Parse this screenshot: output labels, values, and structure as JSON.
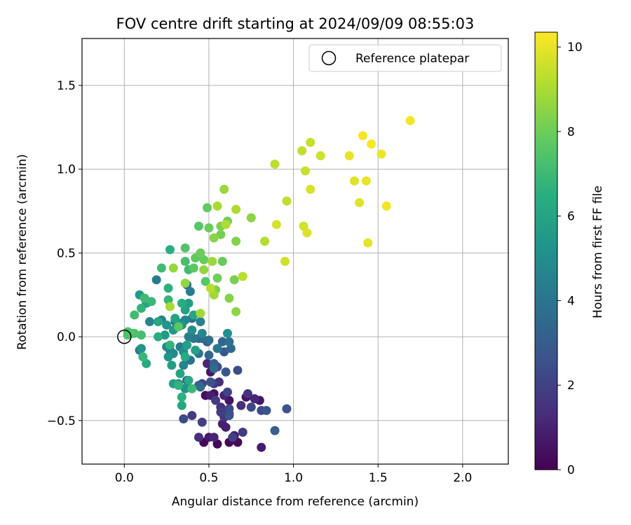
{
  "chart_data": {
    "type": "scatter",
    "title": "FOV centre drift starting at 2024/09/09 08:55:03",
    "xlabel": "Angular distance from reference (arcmin)",
    "ylabel": "Rotation from reference (arcmin)",
    "xlim": [
      -0.25,
      2.27
    ],
    "ylim": [
      -0.76,
      1.78
    ],
    "xticks": [
      0.0,
      0.5,
      1.0,
      1.5,
      2.0
    ],
    "xtick_labels": [
      "0.0",
      "0.5",
      "1.0",
      "1.5",
      "2.0"
    ],
    "yticks": [
      -0.5,
      0.0,
      0.5,
      1.0,
      1.5
    ],
    "ytick_labels": [
      "−0.5",
      "0.0",
      "0.5",
      "1.0",
      "1.5"
    ],
    "grid": true,
    "legend": {
      "position": "top-right",
      "label": "Reference platepar"
    },
    "reference_point": {
      "x": 0.0,
      "y": 0.0
    },
    "colorbar": {
      "label": "Hours from first FF file",
      "min": 0,
      "max": 10.35,
      "ticks": [
        0,
        2,
        4,
        6,
        8,
        10
      ],
      "tick_labels": [
        "0",
        "2",
        "4",
        "6",
        "8",
        "10"
      ],
      "colormap": "viridis"
    },
    "points": [
      {
        "x": 0.47,
        "y": -0.63,
        "h": 0.1
      },
      {
        "x": 0.55,
        "y": -0.64,
        "h": 0.15
      },
      {
        "x": 0.62,
        "y": -0.63,
        "h": 0.2
      },
      {
        "x": 0.67,
        "y": -0.63,
        "h": 0.25
      },
      {
        "x": 0.59,
        "y": -0.45,
        "h": 0.3
      },
      {
        "x": 0.48,
        "y": -0.35,
        "h": 0.35
      },
      {
        "x": 0.6,
        "y": -0.47,
        "h": 0.4
      },
      {
        "x": 0.53,
        "y": -0.34,
        "h": 0.45
      },
      {
        "x": 0.72,
        "y": -0.36,
        "h": 0.5
      },
      {
        "x": 0.62,
        "y": -0.38,
        "h": 0.55
      },
      {
        "x": 0.8,
        "y": -0.38,
        "h": 0.6
      },
      {
        "x": 0.51,
        "y": -0.21,
        "h": 0.65
      },
      {
        "x": 0.5,
        "y": -0.6,
        "h": 0.7
      },
      {
        "x": 0.65,
        "y": -0.59,
        "h": 0.75
      },
      {
        "x": 0.81,
        "y": -0.66,
        "h": 0.8
      },
      {
        "x": 0.51,
        "y": -0.35,
        "h": 0.85
      },
      {
        "x": 0.58,
        "y": -0.52,
        "h": 0.9
      },
      {
        "x": 0.6,
        "y": -0.54,
        "h": 0.95
      },
      {
        "x": 0.59,
        "y": -0.35,
        "h": 1.0
      },
      {
        "x": 0.53,
        "y": -0.6,
        "h": 1.05
      },
      {
        "x": 0.49,
        "y": -0.16,
        "h": 1.1
      },
      {
        "x": 0.77,
        "y": -0.37,
        "h": 1.15
      },
      {
        "x": 0.62,
        "y": -0.46,
        "h": 1.2
      },
      {
        "x": 0.56,
        "y": -0.27,
        "h": 1.3
      },
      {
        "x": 0.44,
        "y": -0.6,
        "h": 1.35
      },
      {
        "x": 0.69,
        "y": -0.41,
        "h": 1.4
      },
      {
        "x": 0.57,
        "y": -0.42,
        "h": 1.45
      },
      {
        "x": 0.73,
        "y": -0.34,
        "h": 1.5
      },
      {
        "x": 0.61,
        "y": -0.44,
        "h": 1.55
      },
      {
        "x": 0.59,
        "y": -0.48,
        "h": 1.6
      },
      {
        "x": 0.53,
        "y": -0.28,
        "h": 1.7
      },
      {
        "x": 0.7,
        "y": -0.57,
        "h": 1.75
      },
      {
        "x": 0.54,
        "y": -0.38,
        "h": 1.8
      },
      {
        "x": 0.4,
        "y": -0.47,
        "h": 1.85
      },
      {
        "x": 0.57,
        "y": -0.45,
        "h": 1.9
      },
      {
        "x": 0.64,
        "y": -0.6,
        "h": 1.95
      },
      {
        "x": 0.46,
        "y": -0.51,
        "h": 2.0
      },
      {
        "x": 0.61,
        "y": -0.33,
        "h": 2.1
      },
      {
        "x": 0.46,
        "y": -0.28,
        "h": 2.15
      },
      {
        "x": 0.75,
        "y": -0.42,
        "h": 2.2
      },
      {
        "x": 0.35,
        "y": -0.49,
        "h": 2.3
      },
      {
        "x": 0.62,
        "y": -0.43,
        "h": 2.35
      },
      {
        "x": 0.81,
        "y": -0.44,
        "h": 2.4
      },
      {
        "x": 0.67,
        "y": -0.2,
        "h": 2.45
      },
      {
        "x": 0.55,
        "y": -0.18,
        "h": 2.5
      },
      {
        "x": 0.51,
        "y": -0.27,
        "h": 2.6
      },
      {
        "x": 0.62,
        "y": -0.47,
        "h": 2.65
      },
      {
        "x": 0.96,
        "y": -0.43,
        "h": 2.7
      },
      {
        "x": 0.84,
        "y": -0.44,
        "h": 2.75
      },
      {
        "x": 0.6,
        "y": -0.21,
        "h": 2.8
      },
      {
        "x": 0.59,
        "y": -0.09,
        "h": 2.9
      },
      {
        "x": 0.49,
        "y": -0.03,
        "h": 3.0
      },
      {
        "x": 0.44,
        "y": -0.29,
        "h": 3.05
      },
      {
        "x": 0.89,
        "y": -0.56,
        "h": 3.1
      },
      {
        "x": 0.53,
        "y": -0.16,
        "h": 3.15
      },
      {
        "x": 0.37,
        "y": -0.26,
        "h": 3.2
      },
      {
        "x": 0.58,
        "y": -0.03,
        "h": 3.3
      },
      {
        "x": 0.5,
        "y": -0.11,
        "h": 3.35
      },
      {
        "x": 0.37,
        "y": 0.31,
        "h": 3.4
      },
      {
        "x": 0.44,
        "y": -0.01,
        "h": 3.45
      },
      {
        "x": 0.63,
        "y": -0.07,
        "h": 3.5
      },
      {
        "x": 0.53,
        "y": -0.19,
        "h": 3.55
      },
      {
        "x": 0.45,
        "y": -0.3,
        "h": 3.6
      },
      {
        "x": 0.46,
        "y": -0.01,
        "h": 3.7
      },
      {
        "x": 0.5,
        "y": -0.02,
        "h": 3.75
      },
      {
        "x": 0.27,
        "y": -0.08,
        "h": 3.8
      },
      {
        "x": 0.62,
        "y": -0.03,
        "h": 3.85
      },
      {
        "x": 0.39,
        "y": -0.14,
        "h": 3.9
      },
      {
        "x": 0.4,
        "y": 0.11,
        "h": 4.0
      },
      {
        "x": 0.44,
        "y": -0.1,
        "h": 4.05
      },
      {
        "x": 0.09,
        "y": -0.08,
        "h": 4.1
      },
      {
        "x": 0.55,
        "y": -0.07,
        "h": 4.15
      },
      {
        "x": 0.41,
        "y": -0.01,
        "h": 4.2
      },
      {
        "x": 0.39,
        "y": 0.27,
        "h": 4.25
      },
      {
        "x": 0.33,
        "y": -0.06,
        "h": 4.3
      },
      {
        "x": 0.19,
        "y": 0.34,
        "h": 4.35
      },
      {
        "x": 0.38,
        "y": 0.0,
        "h": 4.4
      },
      {
        "x": 0.22,
        "y": 0.1,
        "h": 4.45
      },
      {
        "x": 0.45,
        "y": 0.09,
        "h": 4.5
      },
      {
        "x": 0.3,
        "y": 0.09,
        "h": 4.55
      },
      {
        "x": 0.15,
        "y": 0.09,
        "h": 4.6
      },
      {
        "x": 0.35,
        "y": -0.17,
        "h": 4.65
      },
      {
        "x": 0.36,
        "y": 0.1,
        "h": 4.7
      },
      {
        "x": 0.46,
        "y": 0.02,
        "h": 4.75
      },
      {
        "x": 0.32,
        "y": -0.28,
        "h": 4.8
      },
      {
        "x": 0.25,
        "y": -0.06,
        "h": 4.85
      },
      {
        "x": 0.29,
        "y": -0.1,
        "h": 4.9
      },
      {
        "x": 0.4,
        "y": 0.04,
        "h": 4.95
      },
      {
        "x": 0.37,
        "y": -0.3,
        "h": 5.0
      },
      {
        "x": 0.33,
        "y": 0.08,
        "h": 5.05
      },
      {
        "x": 0.35,
        "y": -0.09,
        "h": 5.1
      },
      {
        "x": 0.61,
        "y": 0.02,
        "h": 5.15
      },
      {
        "x": 0.34,
        "y": 0.07,
        "h": 5.2
      },
      {
        "x": 0.36,
        "y": -0.31,
        "h": 5.25
      },
      {
        "x": 0.1,
        "y": -0.07,
        "h": 5.3
      },
      {
        "x": 0.26,
        "y": -0.12,
        "h": 5.35
      },
      {
        "x": 0.25,
        "y": 0.07,
        "h": 5.4
      },
      {
        "x": 0.37,
        "y": -0.05,
        "h": 5.45
      },
      {
        "x": 0.29,
        "y": 0.04,
        "h": 5.5
      },
      {
        "x": 0.24,
        "y": 0.01,
        "h": 5.55
      },
      {
        "x": 0.09,
        "y": 0.25,
        "h": 5.6
      },
      {
        "x": 0.38,
        "y": 0.2,
        "h": 5.65
      },
      {
        "x": 0.28,
        "y": -0.17,
        "h": 5.7
      },
      {
        "x": 0.37,
        "y": -0.05,
        "h": 5.75
      },
      {
        "x": 0.29,
        "y": -0.28,
        "h": 5.8
      },
      {
        "x": 0.42,
        "y": -0.08,
        "h": 5.85
      },
      {
        "x": 0.36,
        "y": 0.16,
        "h": 5.9
      },
      {
        "x": 0.13,
        "y": 0.2,
        "h": 5.95
      },
      {
        "x": 0.3,
        "y": 0.11,
        "h": 6.0
      },
      {
        "x": 0.33,
        "y": -0.22,
        "h": 6.05
      },
      {
        "x": 0.41,
        "y": 0.13,
        "h": 6.1
      },
      {
        "x": 0.2,
        "y": 0.09,
        "h": 6.15
      },
      {
        "x": 0.34,
        "y": -0.41,
        "h": 6.2
      },
      {
        "x": 0.38,
        "y": -0.26,
        "h": 6.25
      },
      {
        "x": 0.13,
        "y": -0.16,
        "h": 6.3
      },
      {
        "x": 0.36,
        "y": -0.12,
        "h": 6.35
      },
      {
        "x": 0.2,
        "y": 0.0,
        "h": 6.4
      },
      {
        "x": 0.34,
        "y": 0.2,
        "h": 6.45
      },
      {
        "x": 0.27,
        "y": 0.52,
        "h": 6.5
      },
      {
        "x": 0.26,
        "y": 0.29,
        "h": 6.55
      },
      {
        "x": 0.34,
        "y": -0.36,
        "h": 6.6
      },
      {
        "x": 0.32,
        "y": -0.29,
        "h": 6.65
      },
      {
        "x": 0.27,
        "y": -0.05,
        "h": 6.7
      },
      {
        "x": 0.1,
        "y": 0.17,
        "h": 6.75
      },
      {
        "x": 0.26,
        "y": 0.22,
        "h": 6.8
      },
      {
        "x": 0.11,
        "y": -0.12,
        "h": 6.85
      },
      {
        "x": 0.16,
        "y": 0.21,
        "h": 6.9
      },
      {
        "x": 0.4,
        "y": -0.31,
        "h": 6.95
      },
      {
        "x": 0.12,
        "y": 0.23,
        "h": 7.0
      },
      {
        "x": 0.38,
        "y": 0.4,
        "h": 7.05
      },
      {
        "x": 0.22,
        "y": 0.41,
        "h": 7.1
      },
      {
        "x": 0.06,
        "y": 0.13,
        "h": 7.15
      },
      {
        "x": 0.1,
        "y": 0.01,
        "h": 7.2
      },
      {
        "x": 0.36,
        "y": 0.45,
        "h": 7.25
      },
      {
        "x": 0.05,
        "y": 0.02,
        "h": 7.3
      },
      {
        "x": 0.02,
        "y": 0.03,
        "h": 7.35
      },
      {
        "x": 0.06,
        "y": 0.02,
        "h": 7.4
      },
      {
        "x": 0.02,
        "y": 0.01,
        "h": 7.45
      },
      {
        "x": 0.36,
        "y": 0.53,
        "h": 7.5
      },
      {
        "x": 0.44,
        "y": 0.66,
        "h": 7.55
      },
      {
        "x": 0.48,
        "y": 0.33,
        "h": 7.6
      },
      {
        "x": 0.32,
        "y": 0.06,
        "h": 7.65
      },
      {
        "x": 0.41,
        "y": 0.41,
        "h": 7.7
      },
      {
        "x": 0.42,
        "y": 0.47,
        "h": 7.75
      },
      {
        "x": 0.49,
        "y": 0.77,
        "h": 7.8
      },
      {
        "x": 0.47,
        "y": 0.46,
        "h": 7.85
      },
      {
        "x": 0.58,
        "y": 0.45,
        "h": 7.9
      },
      {
        "x": 0.5,
        "y": 0.65,
        "h": 7.95
      },
      {
        "x": 0.45,
        "y": 0.5,
        "h": 8.0
      },
      {
        "x": 0.55,
        "y": 0.35,
        "h": 8.05
      },
      {
        "x": 0.61,
        "y": 0.69,
        "h": 8.1
      },
      {
        "x": 0.57,
        "y": 0.61,
        "h": 8.15
      },
      {
        "x": 0.65,
        "y": 0.34,
        "h": 8.2
      },
      {
        "x": 0.57,
        "y": 0.66,
        "h": 8.25
      },
      {
        "x": 0.54,
        "y": 0.28,
        "h": 8.3
      },
      {
        "x": 0.66,
        "y": 0.57,
        "h": 8.35
      },
      {
        "x": 0.62,
        "y": 0.23,
        "h": 8.4
      },
      {
        "x": 0.53,
        "y": 0.59,
        "h": 8.45
      },
      {
        "x": 0.75,
        "y": 0.71,
        "h": 8.5
      },
      {
        "x": 0.66,
        "y": 0.15,
        "h": 8.55
      },
      {
        "x": 0.36,
        "y": 0.32,
        "h": 8.6
      },
      {
        "x": 0.47,
        "y": 0.4,
        "h": 8.65
      },
      {
        "x": 0.29,
        "y": 0.41,
        "h": 8.7
      },
      {
        "x": 0.59,
        "y": 0.88,
        "h": 8.75
      },
      {
        "x": 0.52,
        "y": 0.45,
        "h": 8.8
      },
      {
        "x": 0.45,
        "y": 0.14,
        "h": 8.85
      },
      {
        "x": 0.53,
        "y": 0.25,
        "h": 8.9
      },
      {
        "x": 0.27,
        "y": 0.18,
        "h": 8.95
      },
      {
        "x": 0.55,
        "y": 0.78,
        "h": 9.0
      },
      {
        "x": 0.66,
        "y": 0.76,
        "h": 9.05
      },
      {
        "x": 0.6,
        "y": 0.67,
        "h": 9.1
      },
      {
        "x": 0.83,
        "y": 0.57,
        "h": 9.15
      },
      {
        "x": 0.51,
        "y": 0.29,
        "h": 9.2
      },
      {
        "x": 0.7,
        "y": 0.36,
        "h": 9.25
      },
      {
        "x": 0.89,
        "y": 1.03,
        "h": 9.3
      },
      {
        "x": 0.96,
        "y": 0.81,
        "h": 9.35
      },
      {
        "x": 1.05,
        "y": 1.11,
        "h": 9.4
      },
      {
        "x": 1.1,
        "y": 1.16,
        "h": 9.45
      },
      {
        "x": 1.07,
        "y": 0.99,
        "h": 9.5
      },
      {
        "x": 1.16,
        "y": 1.08,
        "h": 9.55
      },
      {
        "x": 0.95,
        "y": 0.45,
        "h": 9.6
      },
      {
        "x": 1.06,
        "y": 0.66,
        "h": 9.65
      },
      {
        "x": 0.9,
        "y": 0.67,
        "h": 9.7
      },
      {
        "x": 1.1,
        "y": 0.88,
        "h": 9.75
      },
      {
        "x": 1.08,
        "y": 0.62,
        "h": 9.8
      },
      {
        "x": 1.36,
        "y": 0.93,
        "h": 9.85
      },
      {
        "x": 1.39,
        "y": 0.8,
        "h": 9.9
      },
      {
        "x": 1.44,
        "y": 0.56,
        "h": 9.95
      },
      {
        "x": 1.33,
        "y": 1.08,
        "h": 10.0
      },
      {
        "x": 1.43,
        "y": 0.93,
        "h": 10.05
      },
      {
        "x": 1.52,
        "y": 1.09,
        "h": 10.1
      },
      {
        "x": 1.55,
        "y": 0.78,
        "h": 10.15
      },
      {
        "x": 1.69,
        "y": 1.29,
        "h": 10.2
      },
      {
        "x": 1.41,
        "y": 1.2,
        "h": 10.25
      },
      {
        "x": 1.46,
        "y": 1.15,
        "h": 10.3
      }
    ]
  }
}
